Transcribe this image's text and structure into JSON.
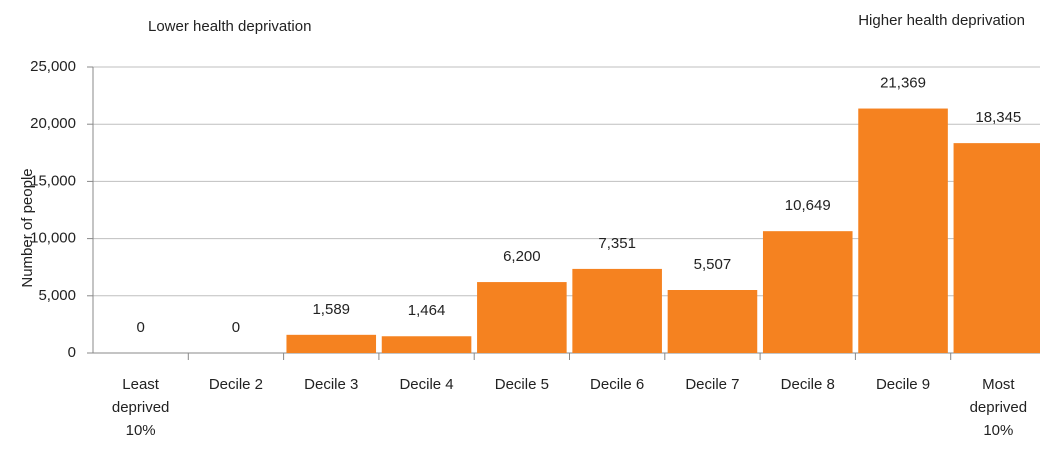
{
  "chart_data": {
    "type": "bar",
    "annotations": [
      "Lower health deprivation",
      "Higher health deprivation"
    ],
    "y_label": "Number of people",
    "categories": [
      "Least deprived 10%",
      "Decile 2",
      "Decile 3",
      "Decile 4",
      "Decile 5",
      "Decile 6",
      "Decile 7",
      "Decile 8",
      "Decile 9",
      "Most deprived 10%"
    ],
    "values": [
      0,
      0,
      1589,
      1464,
      6200,
      7351,
      5507,
      10649,
      21369,
      18345
    ],
    "value_labels": [
      "0",
      "0",
      "1,589",
      "1,464",
      "6,200",
      "7,351",
      "5,507",
      "10,649",
      "21,369",
      "18,345"
    ],
    "color": "#f58220",
    "ylim": [
      0,
      25000
    ],
    "yticks": [
      0,
      {
        "value": 5000,
        "label": "5,000"
      },
      {
        "value": 10000,
        "label": "10,000"
      },
      {
        "value": 15000,
        "label": "15,000"
      },
      {
        "value": 20000,
        "label": "20,000"
      },
      {
        "value": 25000,
        "label": "25,000"
      }
    ],
    "grid": true
  }
}
